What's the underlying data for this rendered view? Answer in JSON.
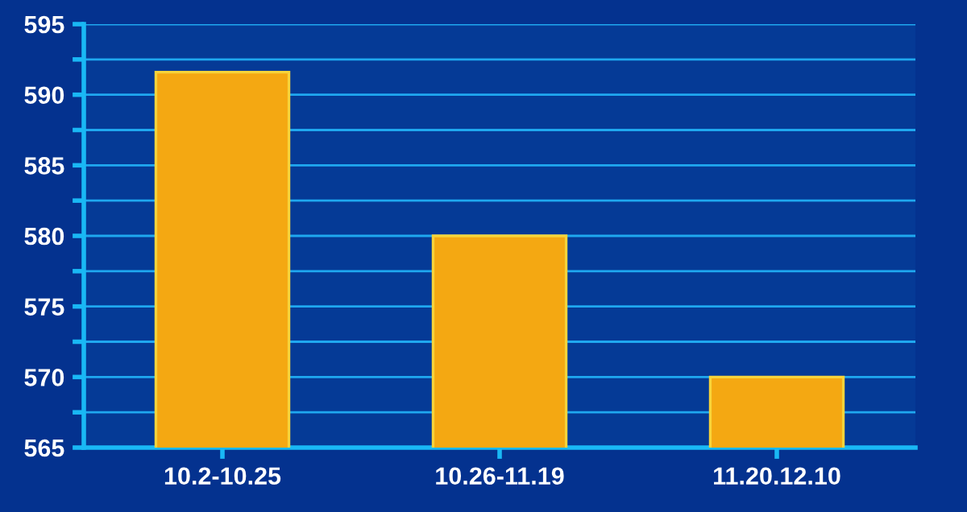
{
  "chart_data": {
    "type": "bar",
    "categories": [
      "10.2-10.25",
      "10.26-11.19",
      "11.20.12.10"
    ],
    "values": [
      591.6,
      580,
      570
    ],
    "color": "#f4a812",
    "ylim": [
      565,
      595
    ],
    "yticks": [
      565,
      {
        "value": 567.5,
        "label": null
      },
      570,
      {
        "value": 572.5,
        "label": null
      },
      575,
      {
        "value": 577.5,
        "label": null
      },
      580,
      {
        "value": 582.5,
        "label": null
      },
      585,
      {
        "value": 587.5,
        "label": null
      },
      590,
      {
        "value": 592.5,
        "label": null
      },
      595
    ],
    "grid": "y"
  }
}
